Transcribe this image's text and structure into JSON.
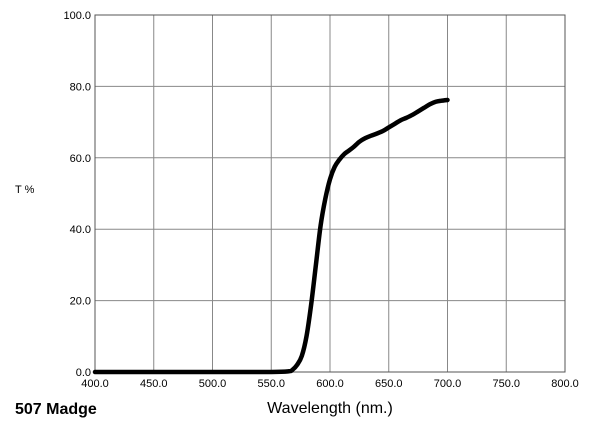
{
  "chart_data": {
    "type": "line",
    "title": "507 Madge",
    "xlabel": "Wavelength (nm.)",
    "ylabel": "T %",
    "xlim": [
      400,
      800
    ],
    "ylim": [
      0,
      100
    ],
    "grid": true,
    "x_ticks": [
      "400.0",
      "450.0",
      "500.0",
      "550.0",
      "600.0",
      "650.0",
      "700.0",
      "750.0",
      "800.0"
    ],
    "y_ticks": [
      "0.0",
      "20.0",
      "40.0",
      "60.0",
      "80.0",
      "100.0"
    ],
    "x_tick_values": [
      400,
      450,
      500,
      550,
      600,
      650,
      700,
      750,
      800
    ],
    "y_tick_values": [
      0,
      20,
      40,
      60,
      80,
      100
    ],
    "series": [
      {
        "x": [
          400,
          450,
          500,
          550,
          565,
          568,
          572,
          576,
          580,
          584,
          588,
          592,
          596,
          600,
          604,
          608,
          612,
          616,
          620,
          625,
          630,
          635,
          640,
          645,
          650,
          655,
          660,
          665,
          670,
          675,
          680,
          685,
          690,
          695,
          700
        ],
        "y": [
          0,
          0,
          0,
          0,
          0.2,
          0.6,
          2,
          4.5,
          10,
          19,
          30,
          41,
          48.5,
          54,
          57.5,
          59.5,
          61,
          62,
          63,
          64.5,
          65.5,
          66.2,
          66.8,
          67.5,
          68.5,
          69.5,
          70.5,
          71.2,
          72,
          73,
          74,
          75,
          75.7,
          76,
          76.2
        ]
      }
    ]
  }
}
